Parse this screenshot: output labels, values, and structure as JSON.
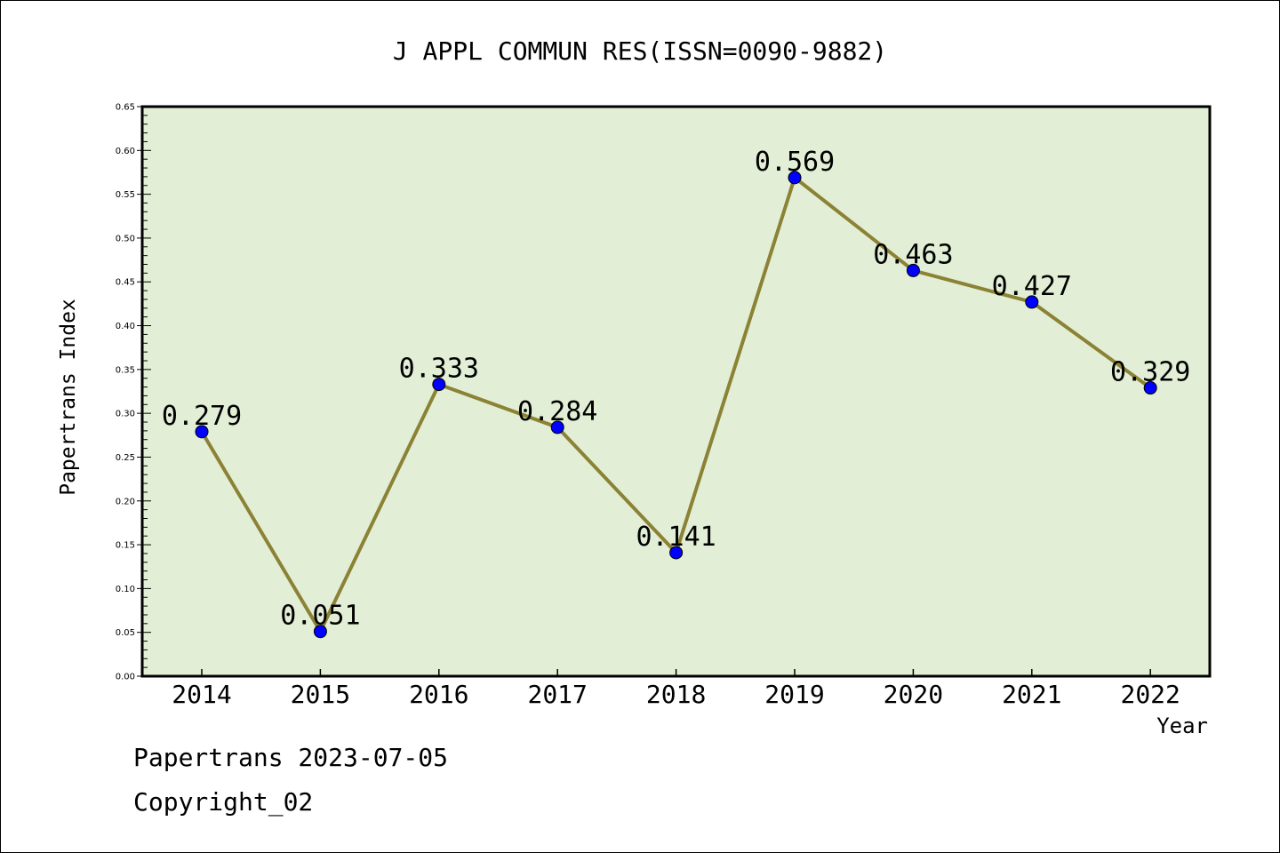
{
  "chart_data": {
    "type": "line",
    "title": "J APPL COMMUN RES(ISSN=0090-9882)",
    "xlabel": "Year",
    "ylabel": "Papertrans Index",
    "categories": [
      "2014",
      "2015",
      "2016",
      "2017",
      "2018",
      "2019",
      "2020",
      "2021",
      "2022"
    ],
    "values": [
      0.279,
      0.051,
      0.333,
      0.284,
      0.141,
      0.569,
      0.463,
      0.427,
      0.329
    ],
    "data_labels": [
      "0.279",
      "0.051",
      "0.333",
      "0.284",
      "0.141",
      "0.569",
      "0.463",
      "0.427",
      "0.329"
    ],
    "ylim": [
      0,
      0.65
    ],
    "yticks": [
      "0.00",
      "0.05",
      "0.10",
      "0.15",
      "0.20",
      "0.25",
      "0.30",
      "0.35",
      "0.40",
      "0.45",
      "0.50",
      "0.55",
      "0.60",
      "0.65"
    ],
    "grid": false,
    "colors": {
      "plot_background": "#e2efd6",
      "line": "#8b8235",
      "marker": "#0000ff"
    }
  },
  "footer": {
    "date_text": "Papertrans 2023-07-05",
    "copyright_text": "Copyright_02"
  }
}
